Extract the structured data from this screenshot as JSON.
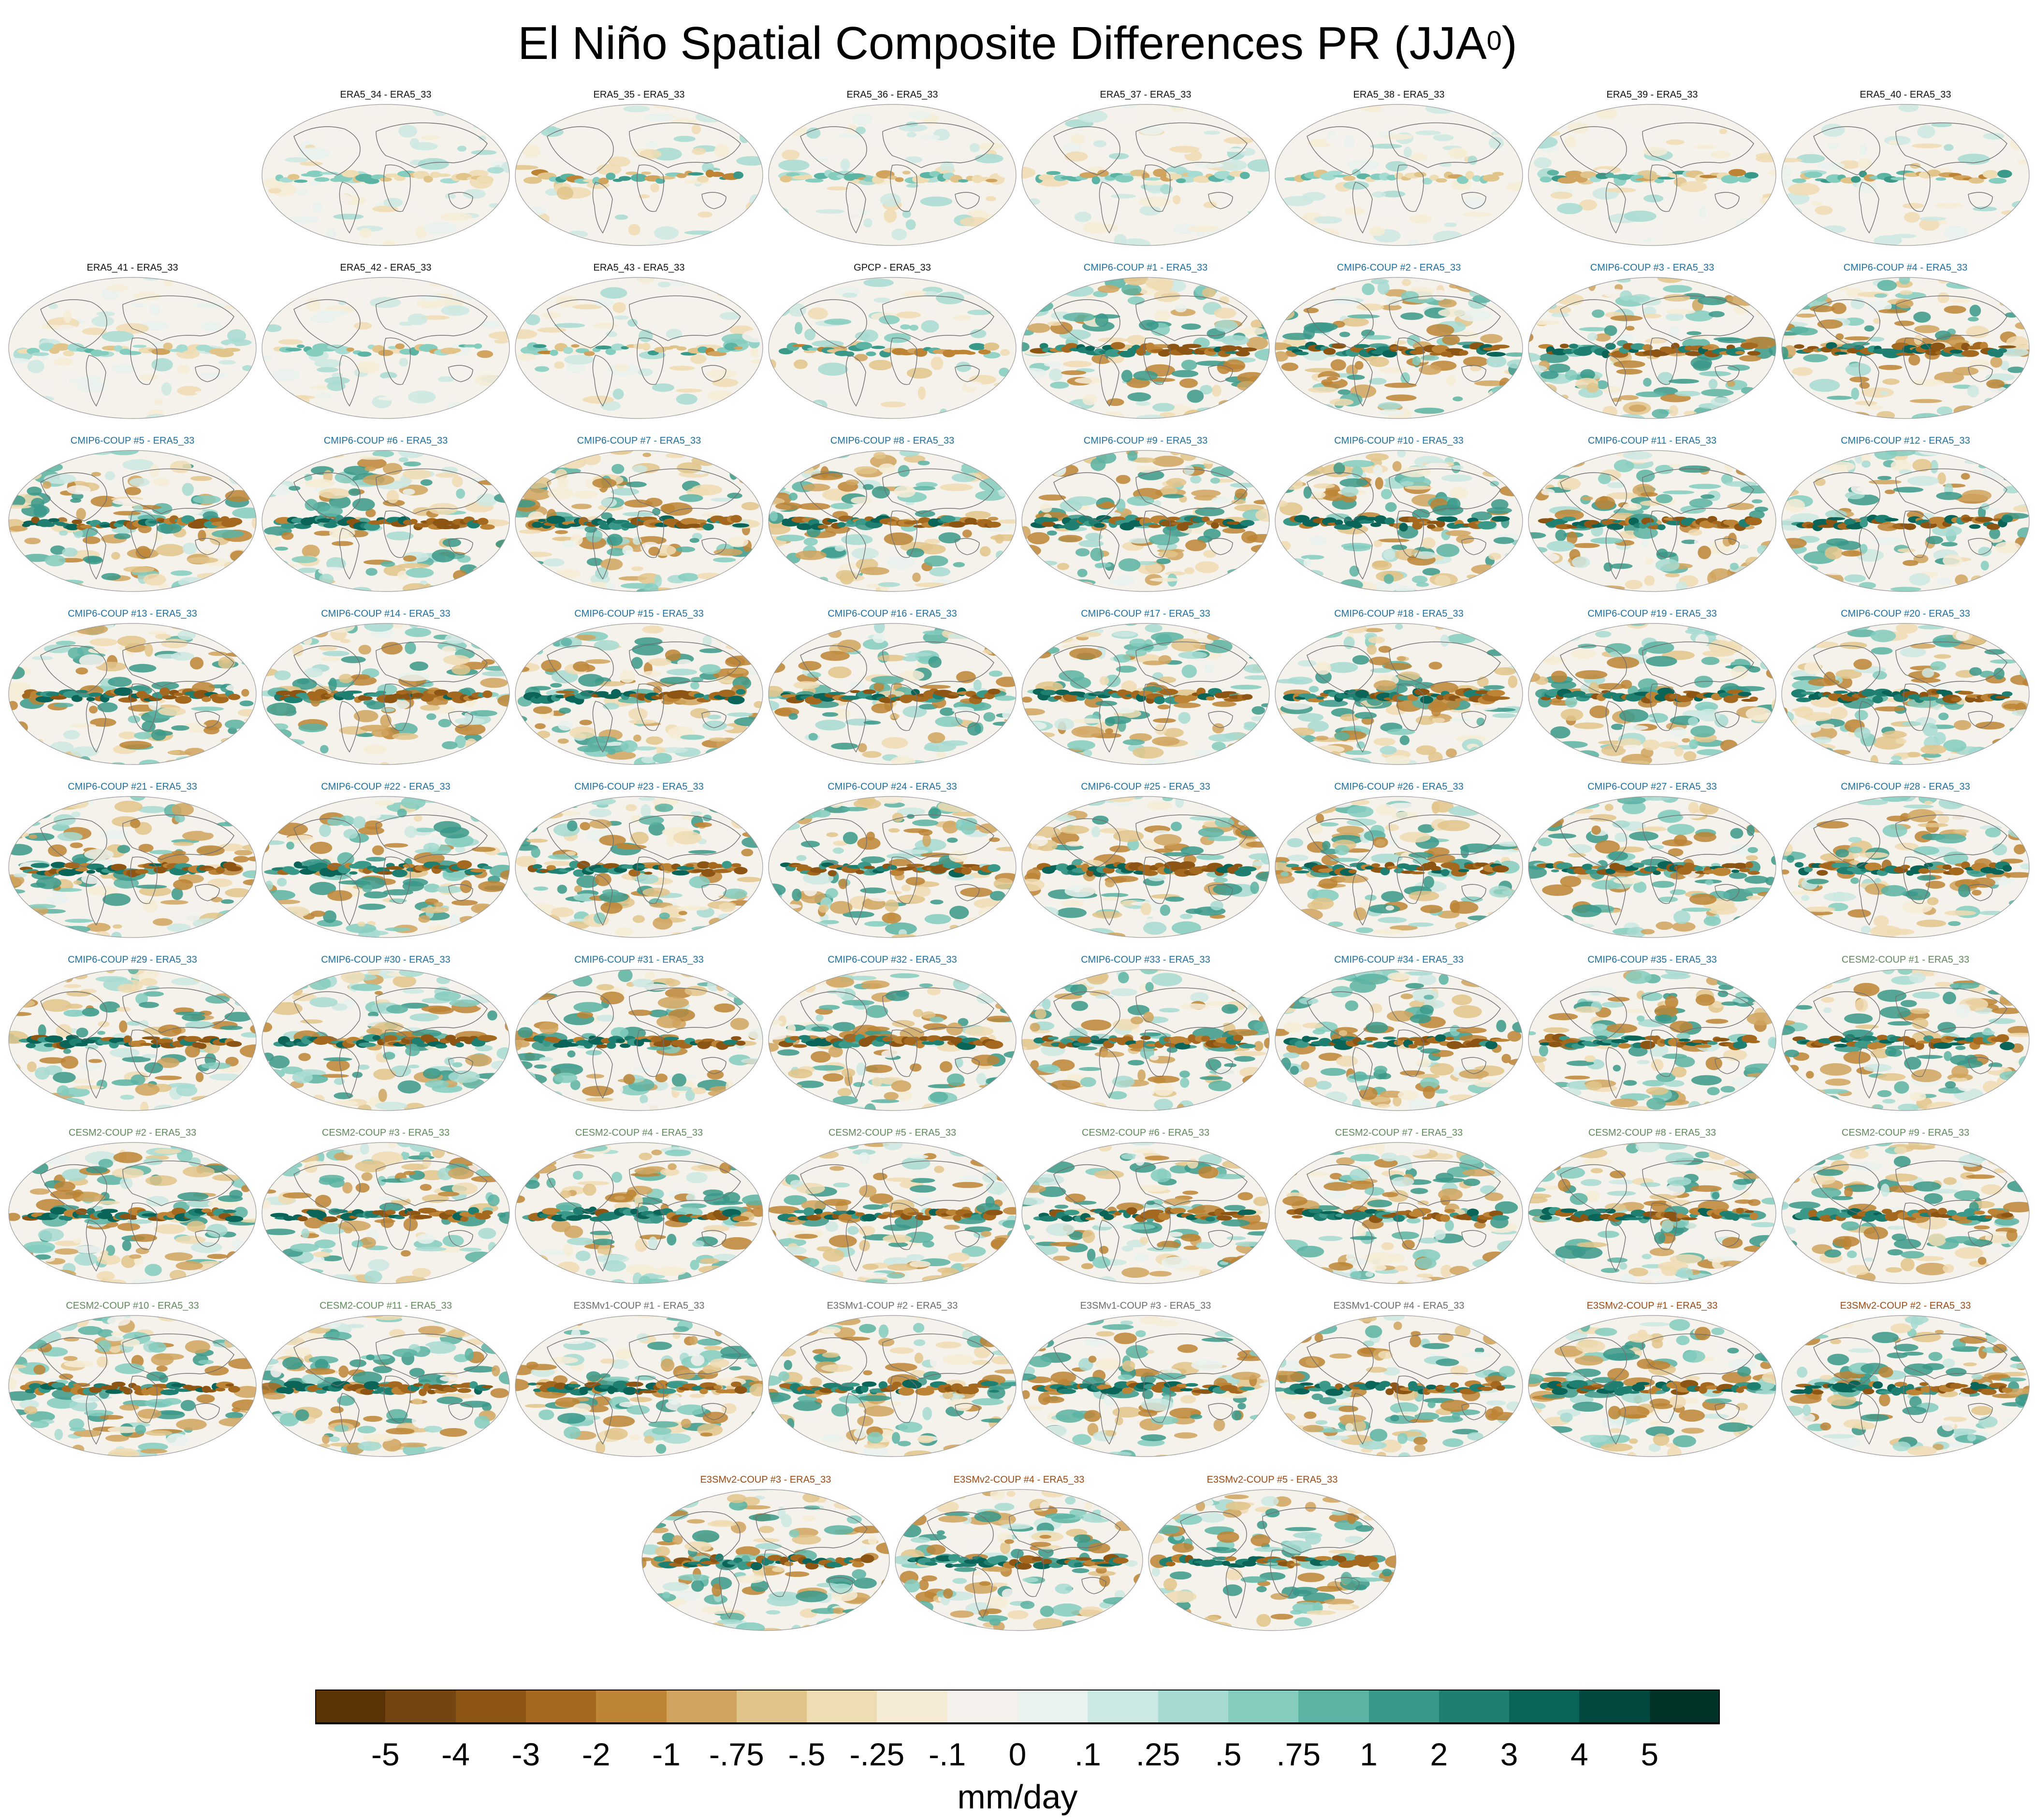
{
  "title": {
    "text": "El Niño Spatial Composite Differences PR (JJA",
    "superscript": "0",
    "closing": ")"
  },
  "colors": {
    "label_black": "#111111",
    "label_cmip6": "#1f6f9f",
    "label_cesm2": "#5f8a5a",
    "label_e3smv1": "#6b6b6b",
    "label_e3smv2": "#9a4a14"
  },
  "chart_data": {
    "type": "heatmap",
    "title": "El Niño Spatial Composite Differences PR (JJA0)",
    "variable": "PR",
    "season": "JJA0",
    "projection": "global elliptical (Robinson-like) maps",
    "panels": [
      {
        "label": "ERA5_34 - ERA5_33",
        "group": "black",
        "amp": 0.2
      },
      {
        "label": "ERA5_35 - ERA5_33",
        "group": "black",
        "amp": 0.3
      },
      {
        "label": "ERA5_36 - ERA5_33",
        "group": "black",
        "amp": 0.25
      },
      {
        "label": "ERA5_37 - ERA5_33",
        "group": "black",
        "amp": 0.25
      },
      {
        "label": "ERA5_38 - ERA5_33",
        "group": "black",
        "amp": 0.2
      },
      {
        "label": "ERA5_39 - ERA5_33",
        "group": "black",
        "amp": 0.3
      },
      {
        "label": "ERA5_40 - ERA5_33",
        "group": "black",
        "amp": 0.3
      },
      {
        "label": "ERA5_41 - ERA5_33",
        "group": "black",
        "amp": 0.2
      },
      {
        "label": "ERA5_42 - ERA5_33",
        "group": "black",
        "amp": 0.25
      },
      {
        "label": "ERA5_43 - ERA5_33",
        "group": "black",
        "amp": 0.3
      },
      {
        "label": "GPCP - ERA5_33",
        "group": "black",
        "amp": 0.4
      },
      {
        "label": "CMIP6-COUP  #1 - ERA5_33",
        "group": "cmip6",
        "amp": 1.0
      },
      {
        "label": "CMIP6-COUP  #2 - ERA5_33",
        "group": "cmip6",
        "amp": 1.0
      },
      {
        "label": "CMIP6-COUP  #3 - ERA5_33",
        "group": "cmip6",
        "amp": 1.0
      },
      {
        "label": "CMIP6-COUP  #4 - ERA5_33",
        "group": "cmip6",
        "amp": 1.0
      },
      {
        "label": "CMIP6-COUP  #5 - ERA5_33",
        "group": "cmip6",
        "amp": 1.0
      },
      {
        "label": "CMIP6-COUP  #6 - ERA5_33",
        "group": "cmip6",
        "amp": 1.0
      },
      {
        "label": "CMIP6-COUP  #7 - ERA5_33",
        "group": "cmip6",
        "amp": 1.0
      },
      {
        "label": "CMIP6-COUP  #8 - ERA5_33",
        "group": "cmip6",
        "amp": 1.0
      },
      {
        "label": "CMIP6-COUP  #9 - ERA5_33",
        "group": "cmip6",
        "amp": 1.0
      },
      {
        "label": "CMIP6-COUP  #10 - ERA5_33",
        "group": "cmip6",
        "amp": 1.0
      },
      {
        "label": "CMIP6-COUP  #11 - ERA5_33",
        "group": "cmip6",
        "amp": 1.0
      },
      {
        "label": "CMIP6-COUP  #12 - ERA5_33",
        "group": "cmip6",
        "amp": 1.0
      },
      {
        "label": "CMIP6-COUP  #13 - ERA5_33",
        "group": "cmip6",
        "amp": 1.0
      },
      {
        "label": "CMIP6-COUP  #14 - ERA5_33",
        "group": "cmip6",
        "amp": 1.0
      },
      {
        "label": "CMIP6-COUP  #15 - ERA5_33",
        "group": "cmip6",
        "amp": 1.0
      },
      {
        "label": "CMIP6-COUP  #16 - ERA5_33",
        "group": "cmip6",
        "amp": 1.0
      },
      {
        "label": "CMIP6-COUP  #17 - ERA5_33",
        "group": "cmip6",
        "amp": 1.0
      },
      {
        "label": "CMIP6-COUP  #18 - ERA5_33",
        "group": "cmip6",
        "amp": 1.0
      },
      {
        "label": "CMIP6-COUP  #19 - ERA5_33",
        "group": "cmip6",
        "amp": 1.0
      },
      {
        "label": "CMIP6-COUP  #20 - ERA5_33",
        "group": "cmip6",
        "amp": 1.0
      },
      {
        "label": "CMIP6-COUP  #21 - ERA5_33",
        "group": "cmip6",
        "amp": 1.0
      },
      {
        "label": "CMIP6-COUP  #22 - ERA5_33",
        "group": "cmip6",
        "amp": 1.0
      },
      {
        "label": "CMIP6-COUP  #23 - ERA5_33",
        "group": "cmip6",
        "amp": 1.0
      },
      {
        "label": "CMIP6-COUP  #24 - ERA5_33",
        "group": "cmip6",
        "amp": 1.0
      },
      {
        "label": "CMIP6-COUP  #25 - ERA5_33",
        "group": "cmip6",
        "amp": 1.0
      },
      {
        "label": "CMIP6-COUP  #26 - ERA5_33",
        "group": "cmip6",
        "amp": 1.0
      },
      {
        "label": "CMIP6-COUP  #27 - ERA5_33",
        "group": "cmip6",
        "amp": 1.0
      },
      {
        "label": "CMIP6-COUP  #28 - ERA5_33",
        "group": "cmip6",
        "amp": 1.0
      },
      {
        "label": "CMIP6-COUP  #29 - ERA5_33",
        "group": "cmip6",
        "amp": 1.0
      },
      {
        "label": "CMIP6-COUP  #30 - ERA5_33",
        "group": "cmip6",
        "amp": 1.0
      },
      {
        "label": "CMIP6-COUP  #31 - ERA5_33",
        "group": "cmip6",
        "amp": 1.0
      },
      {
        "label": "CMIP6-COUP  #32 - ERA5_33",
        "group": "cmip6",
        "amp": 1.0
      },
      {
        "label": "CMIP6-COUP  #33 - ERA5_33",
        "group": "cmip6",
        "amp": 1.0
      },
      {
        "label": "CMIP6-COUP  #34 - ERA5_33",
        "group": "cmip6",
        "amp": 1.0
      },
      {
        "label": "CMIP6-COUP  #35 - ERA5_33",
        "group": "cmip6",
        "amp": 1.0
      },
      {
        "label": "CESM2-COUP  #1 - ERA5_33",
        "group": "cesm2",
        "amp": 1.0
      },
      {
        "label": "CESM2-COUP  #2 - ERA5_33",
        "group": "cesm2",
        "amp": 1.0
      },
      {
        "label": "CESM2-COUP  #3 - ERA5_33",
        "group": "cesm2",
        "amp": 1.0
      },
      {
        "label": "CESM2-COUP  #4 - ERA5_33",
        "group": "cesm2",
        "amp": 1.0
      },
      {
        "label": "CESM2-COUP  #5 - ERA5_33",
        "group": "cesm2",
        "amp": 1.0
      },
      {
        "label": "CESM2-COUP  #6 - ERA5_33",
        "group": "cesm2",
        "amp": 1.0
      },
      {
        "label": "CESM2-COUP  #7 - ERA5_33",
        "group": "cesm2",
        "amp": 1.0
      },
      {
        "label": "CESM2-COUP  #8 - ERA5_33",
        "group": "cesm2",
        "amp": 1.0
      },
      {
        "label": "CESM2-COUP  #9 - ERA5_33",
        "group": "cesm2",
        "amp": 1.0
      },
      {
        "label": "CESM2-COUP  #10 - ERA5_33",
        "group": "cesm2",
        "amp": 1.0
      },
      {
        "label": "CESM2-COUP  #11 - ERA5_33",
        "group": "cesm2",
        "amp": 1.0
      },
      {
        "label": "E3SMv1-COUP #1 - ERA5_33",
        "group": "e3smv1",
        "amp": 1.0
      },
      {
        "label": "E3SMv1-COUP #2 - ERA5_33",
        "group": "e3smv1",
        "amp": 1.0
      },
      {
        "label": "E3SMv1-COUP #3 - ERA5_33",
        "group": "e3smv1",
        "amp": 1.0
      },
      {
        "label": "E3SMv1-COUP #4 - ERA5_33",
        "group": "e3smv1",
        "amp": 1.0
      },
      {
        "label": "E3SMv2-COUP #1 - ERA5_33",
        "group": "e3smv2",
        "amp": 1.0
      },
      {
        "label": "E3SMv2-COUP #2 - ERA5_33",
        "group": "e3smv2",
        "amp": 1.0
      },
      {
        "label": "E3SMv2-COUP #3 - ERA5_33",
        "group": "e3smv2",
        "amp": 1.0
      },
      {
        "label": "E3SMv2-COUP #4 - ERA5_33",
        "group": "e3smv2",
        "amp": 1.0
      },
      {
        "label": "E3SMv2-COUP #5 - ERA5_33",
        "group": "e3smv2",
        "amp": 1.0
      }
    ],
    "colorbar": {
      "units": "mm/day",
      "tick_labels": [
        "-5",
        "-4",
        "-3",
        "-2",
        "-1",
        "-.75",
        "-.5",
        "-.25",
        "-.1",
        "0",
        ".1",
        ".25",
        ".5",
        ".75",
        "1",
        "2",
        "3",
        "4",
        "5"
      ],
      "levels": [
        -5,
        -4,
        -3,
        -2,
        -1,
        -0.75,
        -0.5,
        -0.25,
        -0.1,
        0,
        0.1,
        0.25,
        0.5,
        0.75,
        1,
        2,
        3,
        4,
        5
      ],
      "colors": [
        "#5a3306",
        "#744510",
        "#8c5514",
        "#a4691f",
        "#bc8434",
        "#d0a45e",
        "#e1c48a",
        "#eedcb2",
        "#f6ecd6",
        "#f5f1ec",
        "#e9f2ef",
        "#cce8e2",
        "#a6dbd1",
        "#84cdbf",
        "#5bb3a3",
        "#3a9989",
        "#1f7f70",
        "#0a6558",
        "#01493e",
        "#003328"
      ]
    }
  }
}
